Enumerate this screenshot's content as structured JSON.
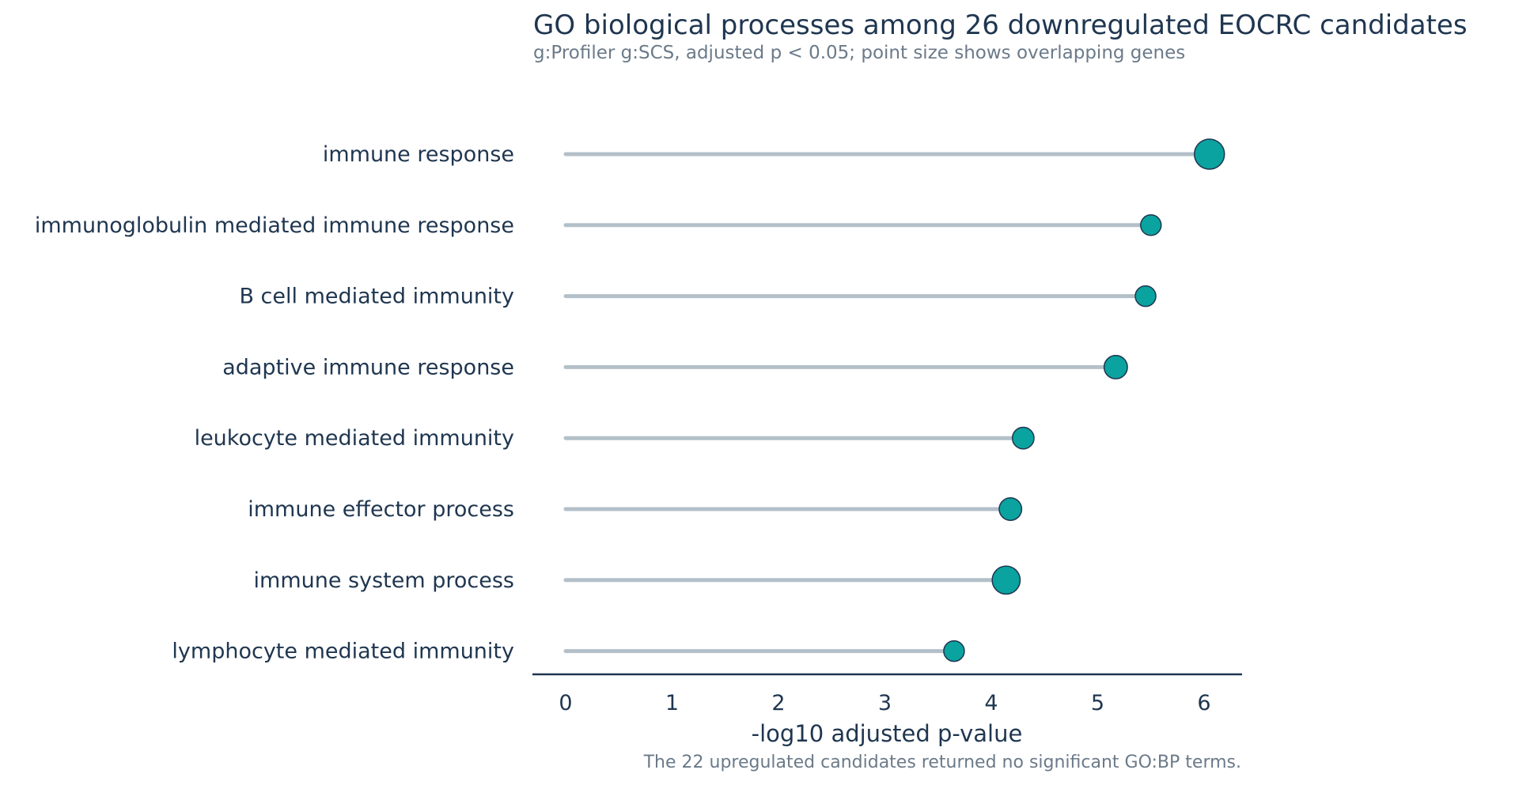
{
  "chart_data": {
    "type": "lollipop",
    "title": "GO biological processes among 26 downregulated EOCRC candidates",
    "subtitle": "g:Profiler g:SCS, adjusted p < 0.05; point size shows overlapping genes",
    "xlabel": "-log10 adjusted p-value",
    "ylabel": "",
    "footnote": "The 22 upregulated candidates returned no significant GO:BP terms.",
    "xlim": [
      -0.3,
      6.4
    ],
    "xticks": [
      0,
      1,
      2,
      3,
      4,
      5,
      6
    ],
    "grid": false,
    "categories": [
      "immune response",
      "immunoglobulin mediated immune response",
      "B cell mediated immunity",
      "adaptive immune response",
      "leukocyte mediated immunity",
      "immune effector process",
      "immune system process",
      "lymphocyte mediated immunity"
    ],
    "values": [
      6.05,
      5.5,
      5.45,
      5.17,
      4.3,
      4.18,
      4.14,
      3.65
    ],
    "point_size_relative": [
      1.0,
      0.55,
      0.55,
      0.68,
      0.6,
      0.64,
      0.9,
      0.55
    ],
    "colors": {
      "point": "#0aa39f",
      "point_edge": "#1f3650",
      "stem": "#b4c0c9",
      "axis": "#1f3650",
      "text": "#1f3650",
      "muted_text": "#6b7a89"
    }
  }
}
